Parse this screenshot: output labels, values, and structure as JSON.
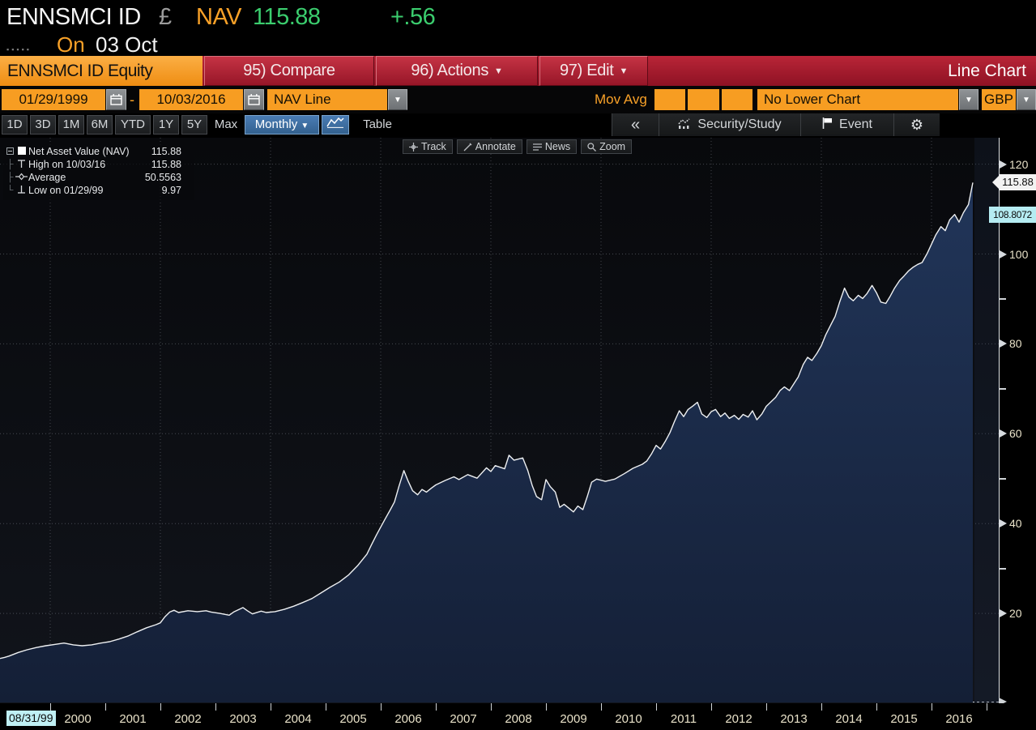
{
  "header": {
    "ticker": "ENNSMCI ID",
    "currency_symbol": "£",
    "field_label": "NAV",
    "last_value": "115.88",
    "change": "+.56",
    "dots": "▪▪▪▪▪",
    "session_label": "On",
    "session_date": "03 Oct"
  },
  "menubar": {
    "security_tab": "ENNSMCI ID Equity",
    "compare": "95) Compare",
    "actions": "96) Actions",
    "edit": "97) Edit",
    "dropdown_glyph": "▼",
    "title": "Line Chart"
  },
  "controls": {
    "start_date": "01/29/1999",
    "range_sep": "-",
    "end_date": "10/03/2016",
    "series_select": "NAV Line",
    "mov_avg_label": "Mov Avg",
    "lower_chart": "No Lower Chart",
    "currency": "GBP",
    "arrow": "▼"
  },
  "toolbar": {
    "periods": [
      "1D",
      "3D",
      "1M",
      "6M",
      "YTD",
      "1Y",
      "5Y",
      "Max"
    ],
    "frequency": "Monthly",
    "frequency_arrow": "▼",
    "table_label": "Table",
    "collapse": "«",
    "security_study": "Security/Study",
    "event": "Event",
    "gear": "⚙"
  },
  "overlay": {
    "track": "Track",
    "annotate": "Annotate",
    "news": "News",
    "zoom": "Zoom"
  },
  "legend": {
    "rows": [
      {
        "label": "Net Asset Value (NAV)",
        "value": "115.88"
      },
      {
        "label": "High on 10/03/16",
        "value": "115.88"
      },
      {
        "label": "Average",
        "value": "50.5563"
      },
      {
        "label": "Low on 01/29/99",
        "value": "9.97"
      }
    ]
  },
  "axis_markers": {
    "last_label": "115.88",
    "last_value": 115.88,
    "track_value_label": "108.8072",
    "track_value": 108.8072,
    "track_date_label": "08/31/99"
  },
  "colors": {
    "accent_orange": "#f79d22",
    "accent_green": "#3bcd6e",
    "menubar_red": "#a01b2d",
    "select_blue": "#3f6fa8",
    "area_fill_top": "#21365a",
    "area_fill_bottom": "#15223a",
    "line": "#eef0f2",
    "axis_label_cream": "#e9e2c9",
    "track_cyan": "#b5ecf2"
  },
  "chart_data": {
    "type": "area",
    "title": "ENNSMCI ID Equity — NAV Line (GBP), Monthly, 01/29/1999 - 10/03/2016",
    "ylabel": "NAV",
    "xlabel": "",
    "ylim": [
      0,
      125.9
    ],
    "y_ticks": [
      20,
      40,
      60,
      80,
      100,
      120
    ],
    "y_minor_ticks": [
      30,
      50,
      70,
      90,
      110
    ],
    "x_tick_years": [
      2000,
      2001,
      2002,
      2003,
      2004,
      2005,
      2006,
      2007,
      2008,
      2009,
      2010,
      2011,
      2012,
      2013,
      2014,
      2015,
      2016
    ],
    "x_grid_years": [
      2000,
      2002,
      2004,
      2006,
      2008,
      2010,
      2012,
      2014,
      2016
    ],
    "grid": true,
    "legend_position": "top-left",
    "stats": {
      "last": 115.88,
      "high": 115.88,
      "high_date": "10/03/16",
      "average": 50.5563,
      "low": 9.97,
      "low_date": "01/29/99"
    },
    "series": [
      {
        "name": "Net Asset Value (NAV)",
        "points": [
          [
            1999.08,
            9.97
          ],
          [
            1999.17,
            10.2
          ],
          [
            1999.25,
            10.5
          ],
          [
            1999.42,
            11.3
          ],
          [
            1999.58,
            11.9
          ],
          [
            1999.75,
            12.4
          ],
          [
            1999.92,
            12.8
          ],
          [
            2000.08,
            13.1
          ],
          [
            2000.25,
            13.4
          ],
          [
            2000.42,
            13.0
          ],
          [
            2000.58,
            12.8
          ],
          [
            2000.75,
            13.0
          ],
          [
            2000.92,
            13.4
          ],
          [
            2001.08,
            13.7
          ],
          [
            2001.25,
            14.3
          ],
          [
            2001.42,
            15.0
          ],
          [
            2001.58,
            15.9
          ],
          [
            2001.75,
            16.8
          ],
          [
            2001.92,
            17.5
          ],
          [
            2002.0,
            17.9
          ],
          [
            2002.08,
            19.2
          ],
          [
            2002.17,
            20.3
          ],
          [
            2002.25,
            20.7
          ],
          [
            2002.33,
            20.2
          ],
          [
            2002.5,
            20.6
          ],
          [
            2002.67,
            20.4
          ],
          [
            2002.83,
            20.6
          ],
          [
            2002.92,
            20.3
          ],
          [
            2003.08,
            20.0
          ],
          [
            2003.25,
            19.6
          ],
          [
            2003.33,
            20.3
          ],
          [
            2003.5,
            21.3
          ],
          [
            2003.58,
            20.6
          ],
          [
            2003.67,
            19.9
          ],
          [
            2003.83,
            20.5
          ],
          [
            2003.92,
            20.2
          ],
          [
            2004.08,
            20.4
          ],
          [
            2004.25,
            20.9
          ],
          [
            2004.42,
            21.6
          ],
          [
            2004.58,
            22.4
          ],
          [
            2004.75,
            23.3
          ],
          [
            2004.92,
            24.6
          ],
          [
            2005.08,
            25.8
          ],
          [
            2005.25,
            27.0
          ],
          [
            2005.42,
            28.6
          ],
          [
            2005.58,
            30.6
          ],
          [
            2005.75,
            33.2
          ],
          [
            2005.83,
            35.2
          ],
          [
            2005.92,
            37.4
          ],
          [
            2006.0,
            39.2
          ],
          [
            2006.08,
            41.0
          ],
          [
            2006.17,
            43.0
          ],
          [
            2006.25,
            44.8
          ],
          [
            2006.33,
            48.2
          ],
          [
            2006.42,
            51.8
          ],
          [
            2006.5,
            49.4
          ],
          [
            2006.58,
            47.3
          ],
          [
            2006.67,
            46.4
          ],
          [
            2006.75,
            47.6
          ],
          [
            2006.83,
            47.0
          ],
          [
            2006.92,
            47.9
          ],
          [
            2007.0,
            48.6
          ],
          [
            2007.17,
            49.6
          ],
          [
            2007.33,
            50.4
          ],
          [
            2007.42,
            49.8
          ],
          [
            2007.58,
            50.9
          ],
          [
            2007.75,
            50.1
          ],
          [
            2007.92,
            52.4
          ],
          [
            2008.0,
            51.6
          ],
          [
            2008.08,
            52.9
          ],
          [
            2008.25,
            52.2
          ],
          [
            2008.33,
            55.2
          ],
          [
            2008.42,
            54.1
          ],
          [
            2008.58,
            54.6
          ],
          [
            2008.67,
            51.8
          ],
          [
            2008.75,
            48.5
          ],
          [
            2008.83,
            46.0
          ],
          [
            2008.92,
            45.3
          ],
          [
            2009.0,
            49.8
          ],
          [
            2009.08,
            48.2
          ],
          [
            2009.17,
            47.0
          ],
          [
            2009.25,
            43.6
          ],
          [
            2009.33,
            44.3
          ],
          [
            2009.5,
            42.6
          ],
          [
            2009.58,
            43.9
          ],
          [
            2009.67,
            43.1
          ],
          [
            2009.75,
            46.0
          ],
          [
            2009.83,
            49.2
          ],
          [
            2009.92,
            49.9
          ],
          [
            2010.08,
            49.4
          ],
          [
            2010.25,
            49.9
          ],
          [
            2010.42,
            51.1
          ],
          [
            2010.58,
            52.3
          ],
          [
            2010.75,
            53.2
          ],
          [
            2010.83,
            53.9
          ],
          [
            2010.92,
            55.6
          ],
          [
            2011.0,
            57.4
          ],
          [
            2011.08,
            56.6
          ],
          [
            2011.17,
            58.4
          ],
          [
            2011.25,
            60.2
          ],
          [
            2011.33,
            62.6
          ],
          [
            2011.42,
            65.1
          ],
          [
            2011.5,
            63.8
          ],
          [
            2011.58,
            65.4
          ],
          [
            2011.67,
            66.2
          ],
          [
            2011.75,
            67.0
          ],
          [
            2011.83,
            64.4
          ],
          [
            2011.92,
            63.6
          ],
          [
            2012.0,
            64.9
          ],
          [
            2012.08,
            65.4
          ],
          [
            2012.17,
            63.8
          ],
          [
            2012.25,
            64.6
          ],
          [
            2012.33,
            63.4
          ],
          [
            2012.42,
            64.1
          ],
          [
            2012.5,
            63.2
          ],
          [
            2012.58,
            64.3
          ],
          [
            2012.67,
            63.7
          ],
          [
            2012.75,
            65.1
          ],
          [
            2012.83,
            63.1
          ],
          [
            2012.92,
            64.4
          ],
          [
            2013.0,
            66.1
          ],
          [
            2013.17,
            68.1
          ],
          [
            2013.25,
            69.6
          ],
          [
            2013.33,
            70.4
          ],
          [
            2013.42,
            69.6
          ],
          [
            2013.58,
            72.6
          ],
          [
            2013.67,
            75.4
          ],
          [
            2013.75,
            77.0
          ],
          [
            2013.83,
            76.3
          ],
          [
            2013.92,
            77.9
          ],
          [
            2014.0,
            79.6
          ],
          [
            2014.08,
            82.0
          ],
          [
            2014.17,
            84.2
          ],
          [
            2014.25,
            86.1
          ],
          [
            2014.33,
            89.2
          ],
          [
            2014.42,
            92.4
          ],
          [
            2014.5,
            90.4
          ],
          [
            2014.58,
            89.6
          ],
          [
            2014.67,
            90.8
          ],
          [
            2014.75,
            90.1
          ],
          [
            2014.83,
            91.2
          ],
          [
            2014.92,
            93.0
          ],
          [
            2015.0,
            91.4
          ],
          [
            2015.08,
            89.3
          ],
          [
            2015.17,
            89.0
          ],
          [
            2015.25,
            90.6
          ],
          [
            2015.33,
            92.4
          ],
          [
            2015.42,
            94.1
          ],
          [
            2015.5,
            95.1
          ],
          [
            2015.58,
            96.2
          ],
          [
            2015.67,
            97.1
          ],
          [
            2015.75,
            97.7
          ],
          [
            2015.83,
            98.1
          ],
          [
            2015.92,
            100.1
          ],
          [
            2016.0,
            102.2
          ],
          [
            2016.08,
            104.3
          ],
          [
            2016.17,
            106.1
          ],
          [
            2016.25,
            105.2
          ],
          [
            2016.33,
            107.6
          ],
          [
            2016.42,
            108.8
          ],
          [
            2016.5,
            107.1
          ],
          [
            2016.58,
            109.2
          ],
          [
            2016.67,
            111.0
          ],
          [
            2016.75,
            115.88
          ]
        ]
      }
    ]
  }
}
